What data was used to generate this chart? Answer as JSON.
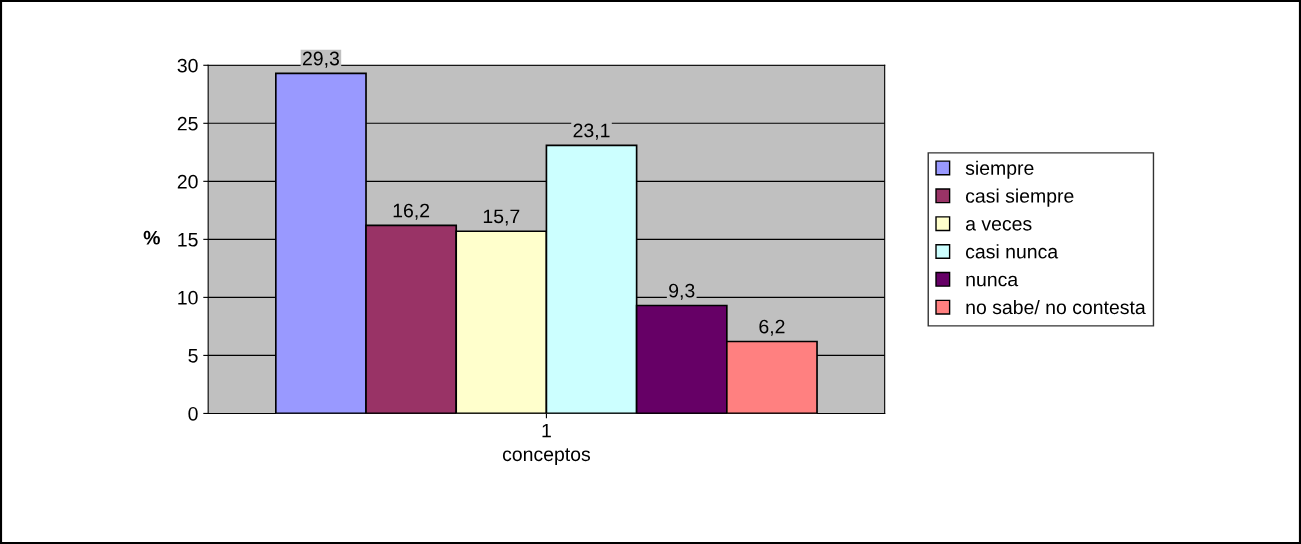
{
  "chart_data": {
    "type": "bar",
    "categories": [
      "1"
    ],
    "xlabel": "conceptos",
    "ylabel": "%",
    "ylim": [
      0,
      30
    ],
    "yticks": [
      0,
      5,
      10,
      15,
      20,
      25,
      30
    ],
    "grid": "y",
    "legend": "right",
    "series": [
      {
        "name": "siempre",
        "color": "#9999ff",
        "values": [
          29.3
        ],
        "value_labels": [
          "29,3"
        ]
      },
      {
        "name": "casi siempre",
        "color": "#993366",
        "values": [
          16.2
        ],
        "value_labels": [
          "16,2"
        ]
      },
      {
        "name": "a veces",
        "color": "#ffffcc",
        "values": [
          15.7
        ],
        "value_labels": [
          "15,7"
        ]
      },
      {
        "name": "casi nunca",
        "color": "#ccffff",
        "values": [
          23.1
        ],
        "value_labels": [
          "23,1"
        ]
      },
      {
        "name": "nunca",
        "color": "#660066",
        "values": [
          9.3
        ],
        "value_labels": [
          "9,3"
        ]
      },
      {
        "name": "no sabe/ no contesta",
        "color": "#ff8080",
        "values": [
          6.2
        ],
        "value_labels": [
          "6,2"
        ]
      }
    ]
  }
}
